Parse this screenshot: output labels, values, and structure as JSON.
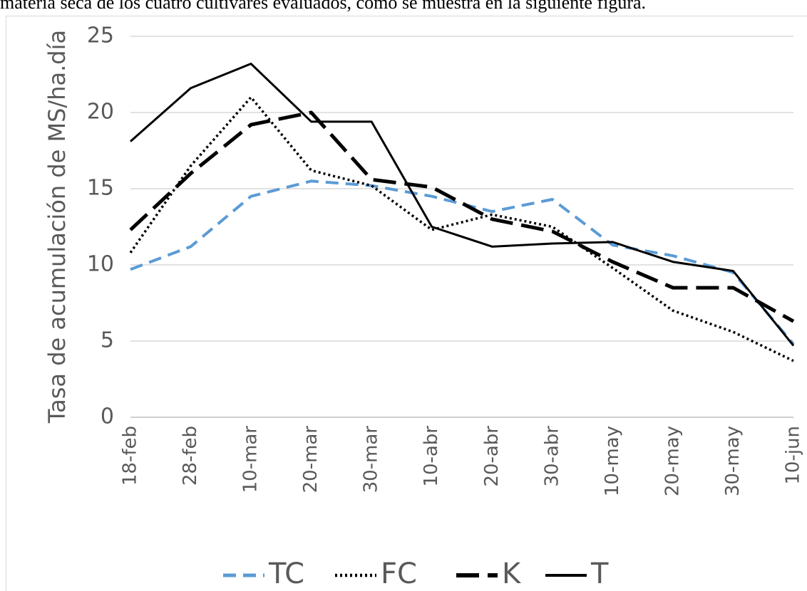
{
  "document_text": "materia seca de los cuatro cultivares evaluados, como se muestra en la siguiente figura.",
  "chart_data": {
    "type": "line",
    "y_label": "Tasa de acumulación de MS/ha.día",
    "categories": [
      "18-feb",
      "28-feb",
      "10-mar",
      "20-mar",
      "30-mar",
      "10-abr",
      "20-abr",
      "30-abr",
      "10-may",
      "20-may",
      "30-may",
      "10-jun"
    ],
    "series": [
      {
        "name": "TC",
        "color": "#5b9bd5",
        "values": [
          9.7,
          11.2,
          14.5,
          15.5,
          15.2,
          14.5,
          13.5,
          14.3,
          11.3,
          10.6,
          9.5,
          4.8
        ]
      },
      {
        "name": "FC",
        "color": "#000000",
        "values": [
          10.8,
          16.5,
          21.0,
          16.2,
          15.2,
          12.3,
          13.3,
          12.5,
          9.8,
          7.0,
          5.6,
          3.7
        ]
      },
      {
        "name": "K",
        "color": "#000000",
        "values": [
          12.3,
          16.0,
          19.2,
          20.0,
          15.6,
          15.1,
          13.0,
          12.2,
          10.2,
          8.5,
          8.5,
          6.3
        ]
      },
      {
        "name": "T",
        "color": "#000000",
        "values": [
          18.1,
          21.6,
          23.2,
          19.4,
          19.4,
          12.5,
          11.2,
          11.4,
          11.5,
          10.2,
          9.6,
          4.7
        ]
      }
    ],
    "ylim": [
      0,
      25
    ],
    "yticks": [
      0,
      5,
      10,
      15,
      20,
      25
    ],
    "grid": true,
    "legend": "bottom"
  }
}
